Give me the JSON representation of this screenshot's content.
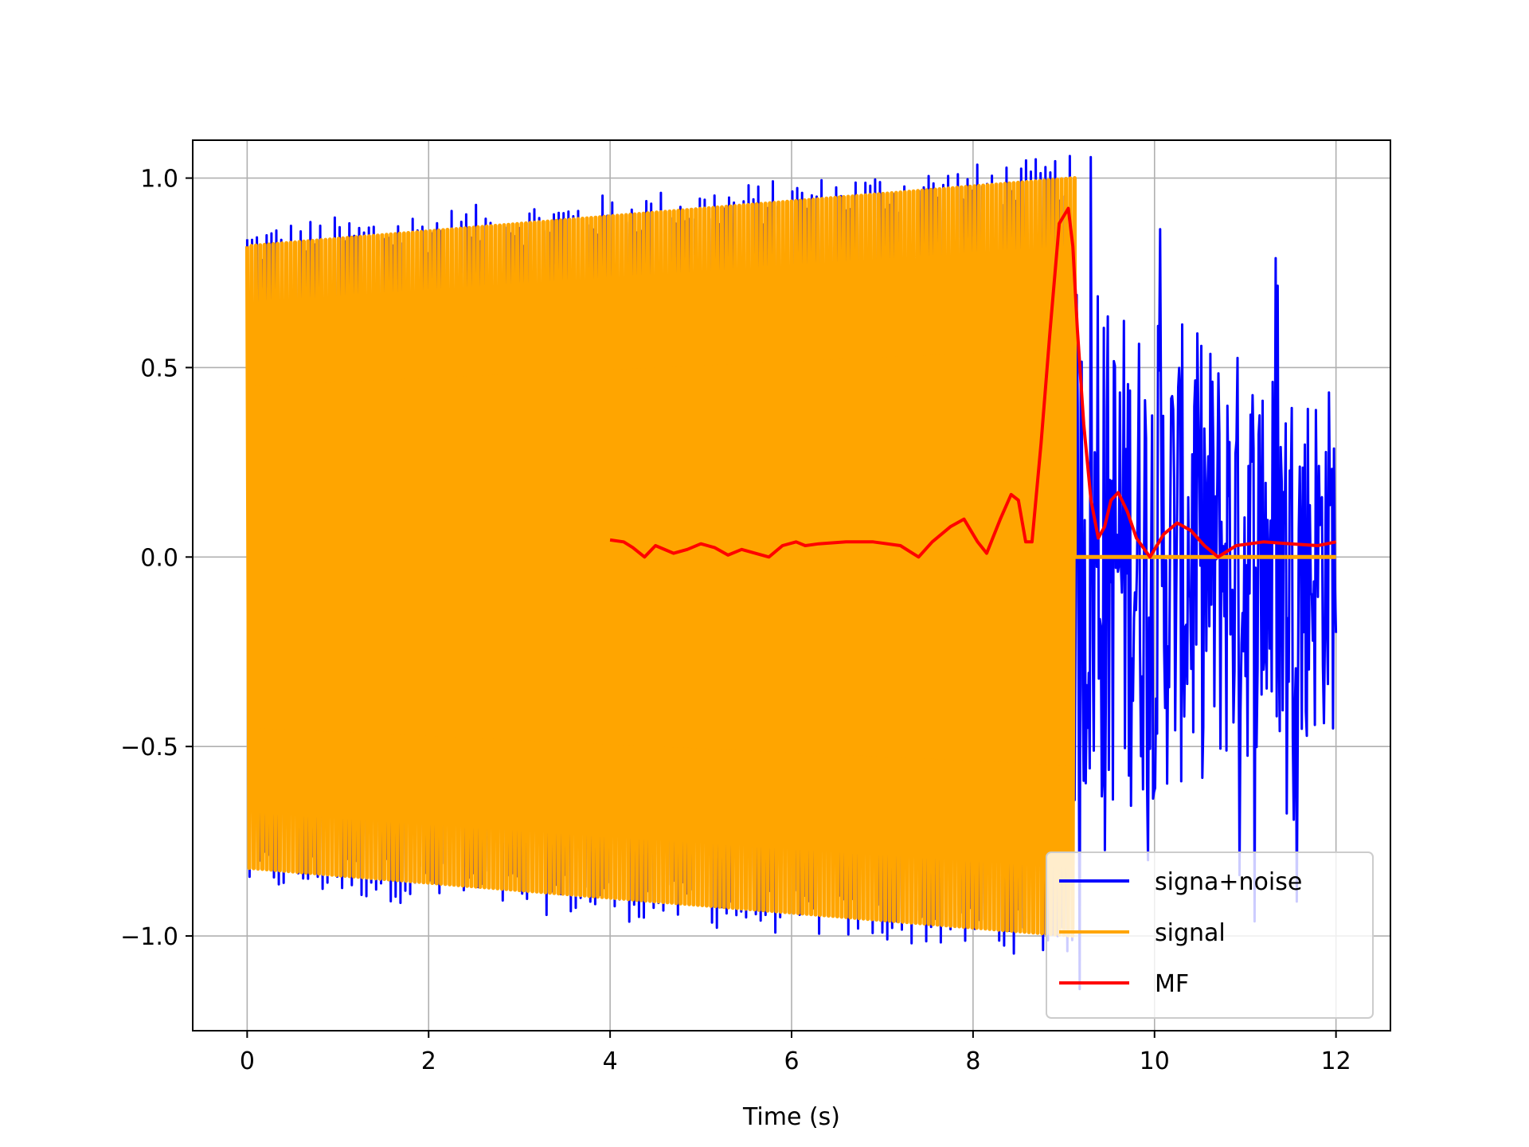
{
  "chart_data": {
    "type": "line",
    "title": "",
    "xlabel": "Time (s)",
    "ylabel": "",
    "xlim": [
      -0.6,
      12.6
    ],
    "ylim": [
      -1.25,
      1.1
    ],
    "xticks": [
      0,
      2,
      4,
      6,
      8,
      10,
      12
    ],
    "xtick_labels": [
      "0",
      "2",
      "4",
      "6",
      "8",
      "10",
      "12"
    ],
    "yticks": [
      -1.0,
      -0.5,
      0.0,
      0.5,
      1.0
    ],
    "ytick_labels": [
      "−1.0",
      "−0.5",
      "0.0",
      "0.5",
      "1.0"
    ],
    "grid": true,
    "legend_position": "lower-right",
    "series": [
      {
        "name": "signa+noise",
        "color": "#0000ff",
        "description_points": {
          "x": [
            0,
            9.12,
            9.12,
            12
          ],
          "note_amp": [
            0.8,
            1.0,
            0.95,
            0.55
          ]
        }
      },
      {
        "name": "signal",
        "color": "#ffa500",
        "envelope": {
          "x": [
            0,
            9.12
          ],
          "amp": [
            0.82,
            1.0
          ]
        },
        "after": {
          "x": [
            9.12,
            12
          ],
          "y": [
            0,
            0
          ]
        }
      },
      {
        "name": "MF",
        "color": "#ff0000",
        "x": [
          4.0,
          4.15,
          4.25,
          4.38,
          4.5,
          4.7,
          4.85,
          5.0,
          5.15,
          5.3,
          5.45,
          5.6,
          5.75,
          5.9,
          6.05,
          6.15,
          6.3,
          6.6,
          6.9,
          7.2,
          7.4,
          7.55,
          7.75,
          7.9,
          8.05,
          8.15,
          8.3,
          8.42,
          8.5,
          8.58,
          8.65,
          8.75,
          8.85,
          8.95,
          9.05,
          9.1,
          9.15,
          9.22,
          9.3,
          9.38,
          9.45,
          9.52,
          9.6,
          9.7,
          9.8,
          9.95,
          10.1,
          10.25,
          10.4,
          10.55,
          10.7,
          10.9,
          11.2,
          11.5,
          11.8,
          12.0
        ],
        "y": [
          0.045,
          0.04,
          0.025,
          0.0,
          0.03,
          0.01,
          0.02,
          0.035,
          0.025,
          0.005,
          0.02,
          0.01,
          0.0,
          0.03,
          0.04,
          0.03,
          0.035,
          0.04,
          0.04,
          0.03,
          0.0,
          0.04,
          0.08,
          0.1,
          0.04,
          0.01,
          0.1,
          0.165,
          0.15,
          0.04,
          0.04,
          0.3,
          0.6,
          0.88,
          0.92,
          0.82,
          0.6,
          0.35,
          0.15,
          0.05,
          0.08,
          0.15,
          0.17,
          0.12,
          0.05,
          0.0,
          0.06,
          0.09,
          0.07,
          0.03,
          0.0,
          0.03,
          0.04,
          0.035,
          0.03,
          0.04
        ]
      }
    ]
  }
}
